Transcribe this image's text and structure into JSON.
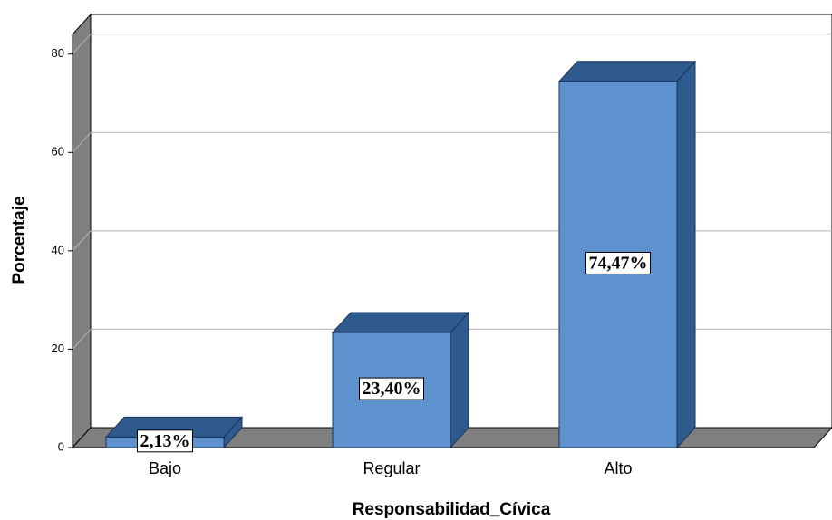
{
  "chart_data": {
    "type": "bar3d",
    "x_label": "Responsabilidad_Cívica",
    "y_label": "Porcentaje",
    "categories": [
      "Bajo",
      "Regular",
      "Alto"
    ],
    "values": [
      2.13,
      23.4,
      74.47
    ],
    "value_labels": [
      "2,13%",
      "23,40%",
      "74,47%"
    ],
    "color": "#5e92cf",
    "ylim": [
      0,
      84
    ],
    "yticks": [
      0,
      20,
      40,
      60,
      80
    ],
    "grid": true
  }
}
